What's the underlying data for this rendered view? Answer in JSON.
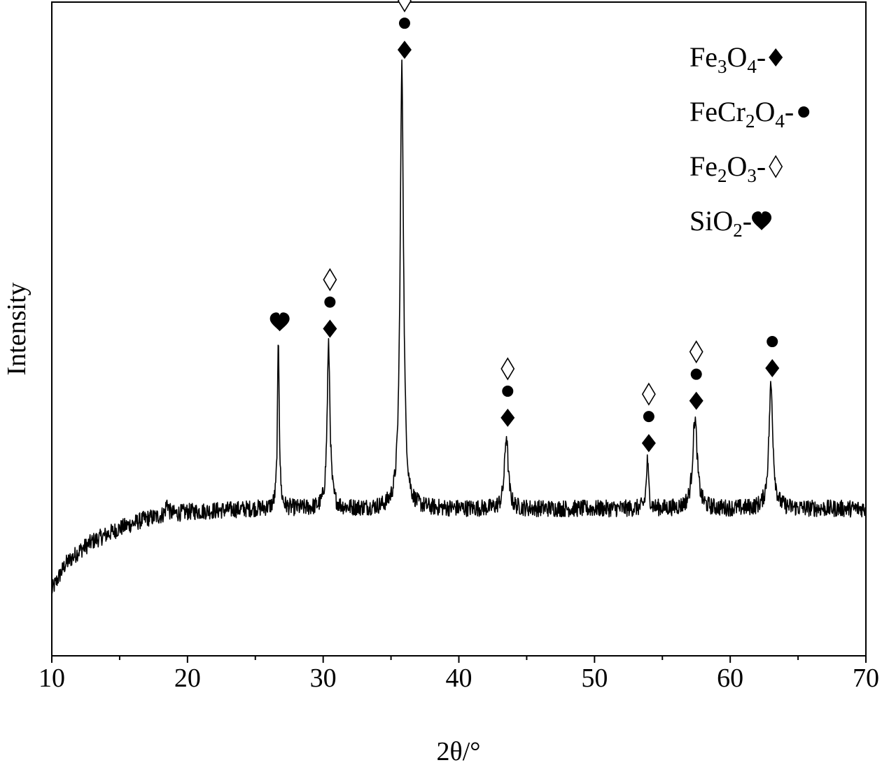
{
  "chart_data": {
    "type": "line",
    "xlabel": "2θ/°",
    "ylabel": "Intensity",
    "xlim": [
      10,
      70
    ],
    "ylim": [
      0,
      100
    ],
    "x_ticks": [
      10,
      20,
      30,
      40,
      50,
      60,
      70
    ],
    "x_minor_step": 5,
    "y_tick_labels": "none",
    "grid": false,
    "legend_position": "top-right",
    "colors": {
      "line": "#000000",
      "marker": "#000000"
    },
    "baseline": [
      {
        "x": 10,
        "y": 10
      },
      {
        "x": 11,
        "y": 14
      },
      {
        "x": 12,
        "y": 16
      },
      {
        "x": 13,
        "y": 17.5
      },
      {
        "x": 15,
        "y": 19.5
      },
      {
        "x": 17,
        "y": 21
      },
      {
        "x": 20,
        "y": 22
      },
      {
        "x": 25,
        "y": 22.5
      },
      {
        "x": 30,
        "y": 22.5
      },
      {
        "x": 40,
        "y": 22.5
      },
      {
        "x": 50,
        "y": 22.5
      },
      {
        "x": 60,
        "y": 22.5
      },
      {
        "x": 70,
        "y": 22.5
      }
    ],
    "noise_amplitude": 1.3,
    "peaks": [
      {
        "x": 18.5,
        "height": 2.0,
        "width": 0.12
      },
      {
        "x": 26.7,
        "height": 25.8,
        "width": 0.08
      },
      {
        "x": 30.4,
        "height": 24.8,
        "width": 0.13
      },
      {
        "x": 35.8,
        "height": 67.5,
        "width": 0.15
      },
      {
        "x": 43.5,
        "height": 11.2,
        "width": 0.16
      },
      {
        "x": 53.9,
        "height": 7.3,
        "width": 0.1
      },
      {
        "x": 57.4,
        "height": 13.8,
        "width": 0.2
      },
      {
        "x": 63.0,
        "height": 18.8,
        "width": 0.18
      }
    ],
    "phase_markers": [
      {
        "x": 26.8,
        "stack": [
          "heart"
        ]
      },
      {
        "x": 30.5,
        "stack": [
          "diamond-filled",
          "circle",
          "diamond-open"
        ]
      },
      {
        "x": 36.0,
        "stack": [
          "diamond-filled",
          "circle",
          "diamond-open"
        ]
      },
      {
        "x": 43.6,
        "stack": [
          "diamond-filled",
          "circle",
          "diamond-open"
        ]
      },
      {
        "x": 54.0,
        "stack": [
          "diamond-filled",
          "circle",
          "diamond-open"
        ]
      },
      {
        "x": 57.5,
        "stack": [
          "diamond-filled",
          "circle",
          "diamond-open"
        ]
      },
      {
        "x": 63.1,
        "stack": [
          "diamond-filled",
          "circle"
        ]
      }
    ],
    "legend": [
      {
        "parts": [
          {
            "t": "Fe"
          },
          {
            "t": "3",
            "sub": true
          },
          {
            "t": "O"
          },
          {
            "t": "4",
            "sub": true
          },
          {
            "t": "-"
          }
        ],
        "marker": "diamond-filled"
      },
      {
        "parts": [
          {
            "t": "FeCr"
          },
          {
            "t": "2",
            "sub": true
          },
          {
            "t": "O"
          },
          {
            "t": "4",
            "sub": true
          },
          {
            "t": "-"
          }
        ],
        "marker": "circle"
      },
      {
        "parts": [
          {
            "t": "Fe"
          },
          {
            "t": "2",
            "sub": true
          },
          {
            "t": "O"
          },
          {
            "t": "3",
            "sub": true
          },
          {
            "t": "-"
          }
        ],
        "marker": "diamond-open"
      },
      {
        "parts": [
          {
            "t": "SiO"
          },
          {
            "t": "2",
            "sub": true
          },
          {
            "t": "-"
          }
        ],
        "marker": "heart"
      }
    ]
  }
}
